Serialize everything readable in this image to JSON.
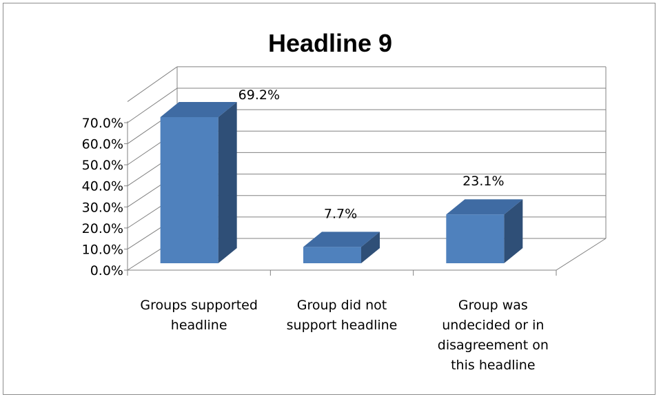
{
  "chart_data": {
    "type": "bar",
    "title": "Headline 9",
    "categories": [
      [
        "Groups supported",
        "headline"
      ],
      [
        "Group did not",
        "support headline"
      ],
      [
        "Group was",
        "undecided or in",
        "disagreement on",
        "this headline"
      ]
    ],
    "values": [
      69.2,
      7.7,
      23.1
    ],
    "data_labels": [
      "69.2%",
      "7.7%",
      "23.1%"
    ],
    "y_ticks": [
      "0.0%",
      "10.0%",
      "20.0%",
      "30.0%",
      "40.0%",
      "50.0%",
      "60.0%",
      "70.0%"
    ],
    "ylim": [
      0,
      70
    ],
    "grid": true,
    "legend": "none",
    "colors": {
      "bar_front": "#4f81bd",
      "bar_top": "#3f6ba3",
      "bar_side": "#2f4f77",
      "grid": "#808080",
      "axis": "#808080"
    }
  }
}
